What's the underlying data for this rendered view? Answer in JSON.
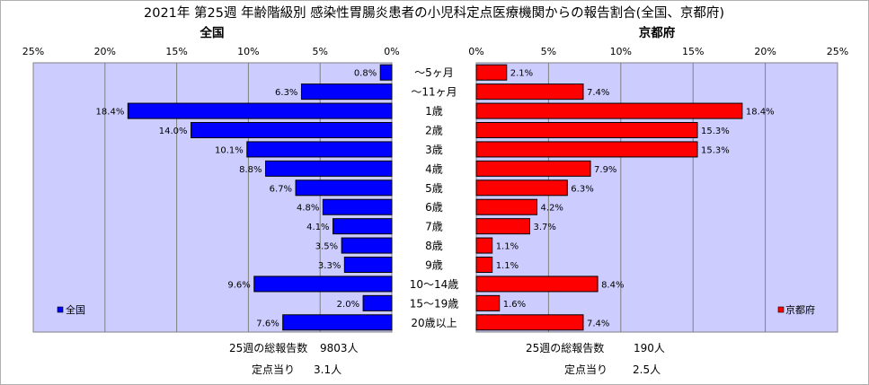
{
  "chart_data": {
    "type": "bar",
    "orientation": "horizontal",
    "title": "2021年 第25週 年齢階級別 感染性胃腸炎患者の小児科定点医療機関からの報告割合(全国、京都府)",
    "categories": [
      "～5ヶ月",
      "～11ヶ月",
      "1歳",
      "2歳",
      "3歳",
      "4歳",
      "5歳",
      "6歳",
      "7歳",
      "8歳",
      "9歳",
      "10～14歳",
      "15～19歳",
      "20歳以上"
    ],
    "xlim": [
      0,
      25
    ],
    "x_ticks": [
      "25%",
      "20%",
      "15%",
      "10%",
      "5%",
      "0%"
    ],
    "x_ticks_right": [
      "0%",
      "5%",
      "10%",
      "15%",
      "20%",
      "25%"
    ],
    "grid": true,
    "series": [
      {
        "name": "全国",
        "legend": "全国",
        "panel_title": "全国",
        "color": "#0000ff",
        "values": [
          0.8,
          6.3,
          18.4,
          14.0,
          10.1,
          8.8,
          6.7,
          4.8,
          4.1,
          3.5,
          3.3,
          9.6,
          2.0,
          7.6
        ],
        "labels": [
          "0.8%",
          "6.3%",
          "18.4%",
          "14.0%",
          "10.1%",
          "8.8%",
          "6.7%",
          "4.8%",
          "4.1%",
          "3.5%",
          "3.3%",
          "9.6%",
          "2.0%",
          "7.6%"
        ],
        "footer": {
          "count_label": "25週の総報告数",
          "count_value": "9803人",
          "per_label": "定点当り",
          "per_value": "3.1人"
        }
      },
      {
        "name": "京都府",
        "legend": "京都府",
        "panel_title": "京都府",
        "color": "#ff0000",
        "values": [
          2.1,
          7.4,
          18.4,
          15.3,
          15.3,
          7.9,
          6.3,
          4.2,
          3.7,
          1.1,
          1.1,
          8.4,
          1.6,
          7.4
        ],
        "labels": [
          "2.1%",
          "7.4%",
          "18.4%",
          "15.3%",
          "15.3%",
          "7.9%",
          "6.3%",
          "4.2%",
          "3.7%",
          "1.1%",
          "1.1%",
          "8.4%",
          "1.6%",
          "7.4%"
        ],
        "footer": {
          "count_label": "25週の総報告数",
          "count_value": "190人",
          "per_label": "定点当り",
          "per_value": "2.5人"
        }
      }
    ],
    "colors": {
      "plot_bg": "#ccccff",
      "bar_outline": "#000000",
      "grid": "#808080"
    }
  }
}
